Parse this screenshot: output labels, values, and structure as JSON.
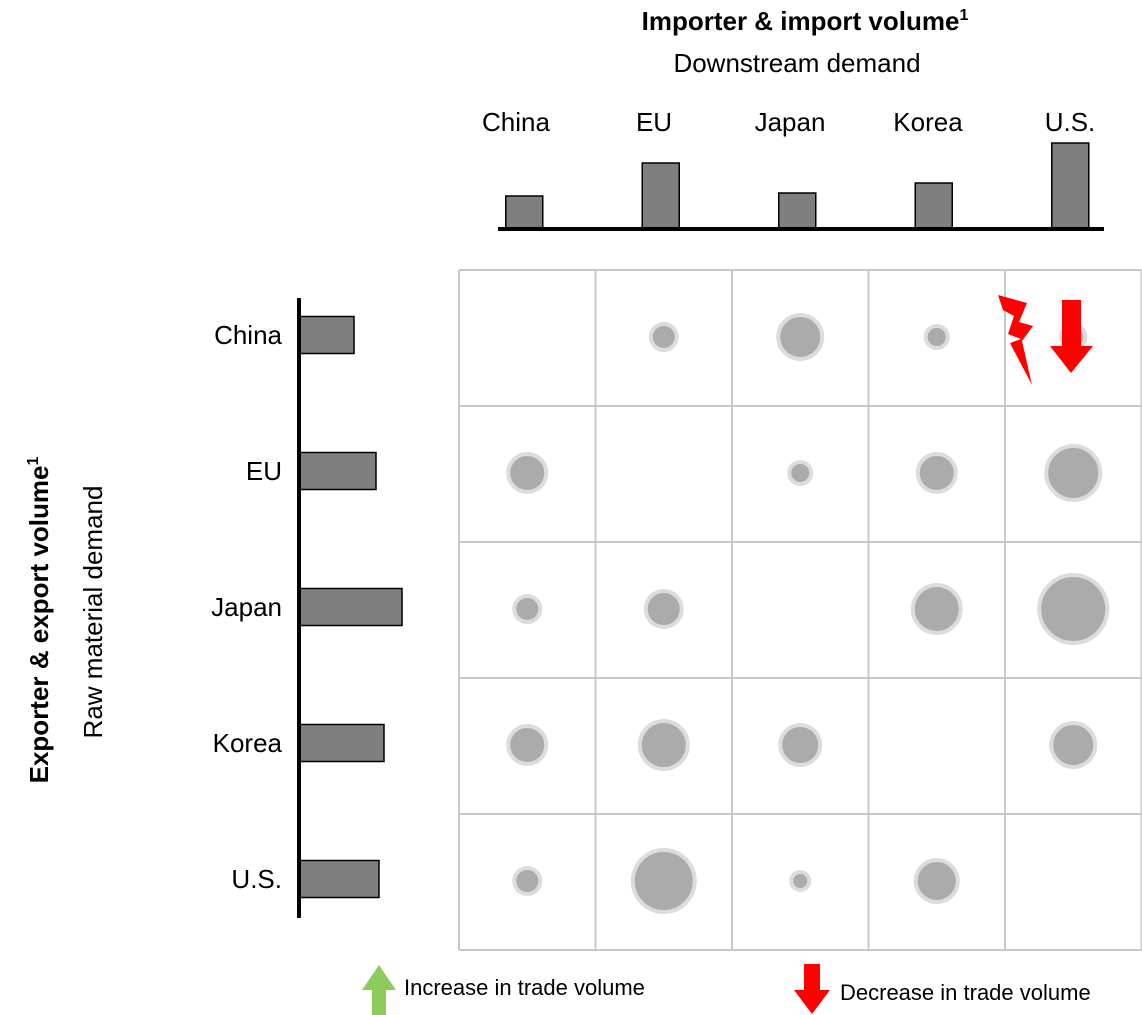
{
  "chart_data": {
    "type": "bubble-matrix",
    "importer_axis": {
      "title": "Importer & import volume",
      "title_superscript": "1",
      "subtitle": "Downstream demand",
      "categories": [
        "China",
        "EU",
        "Japan",
        "Korea",
        "U.S."
      ],
      "bar_values": [
        33,
        66,
        36,
        46,
        86
      ]
    },
    "exporter_axis": {
      "title": "Exporter & export volume",
      "title_superscript": "1",
      "subtitle": "Raw material demand",
      "categories": [
        "China",
        "EU",
        "Japan",
        "Korea",
        "U.S."
      ],
      "bar_values": [
        55,
        77,
        103,
        85,
        80
      ]
    },
    "bubbles": [
      [
        null,
        13,
        22,
        11,
        12
      ],
      [
        19,
        null,
        11,
        19,
        27
      ],
      [
        13,
        18,
        null,
        24,
        34
      ],
      [
        19,
        24,
        20,
        null,
        22
      ],
      [
        13,
        31,
        9,
        21,
        null
      ]
    ],
    "cell_markers": [
      {
        "row": "China",
        "col": "U.S.",
        "marker": "decrease-arrow"
      },
      {
        "row": "China",
        "col": "U.S.",
        "marker": "lightning"
      }
    ],
    "legend": {
      "increase": {
        "label": "Increase in trade volume",
        "color": "#8DCC5B"
      },
      "decrease": {
        "label": "Decrease in trade volume",
        "color": "#FF0000"
      }
    },
    "colors": {
      "bar_fill": "#7F7F7F",
      "bubble_fill": "#ABABAB",
      "bubble_ring": "#DCDCDC",
      "grid": "#C8C8C8",
      "axis": "#000000"
    }
  }
}
